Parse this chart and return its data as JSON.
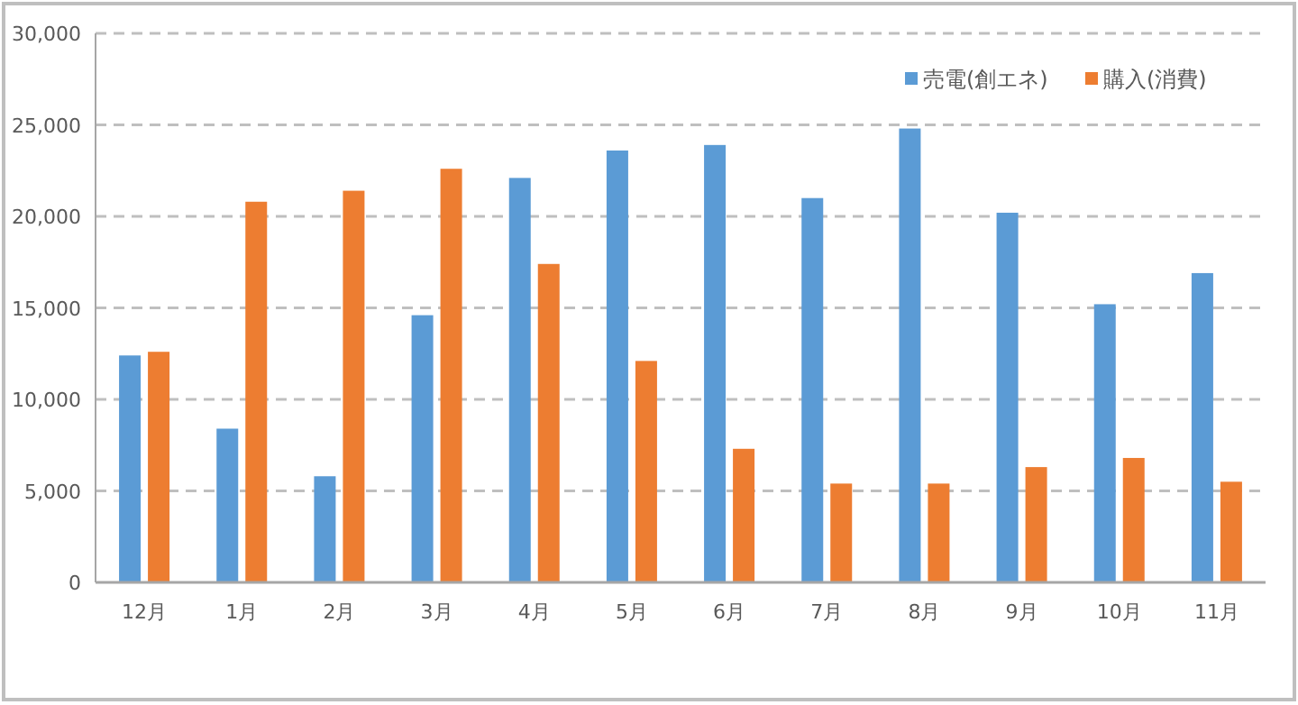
{
  "chart_data": {
    "type": "bar",
    "categories": [
      "12月",
      "1月",
      "2月",
      "3月",
      "4月",
      "5月",
      "6月",
      "7月",
      "8月",
      "9月",
      "10月",
      "11月"
    ],
    "series": [
      {
        "name": "売電(創エネ)",
        "color": "#5b9bd5",
        "values": [
          12400,
          8400,
          5800,
          14600,
          22100,
          23600,
          23900,
          21000,
          24800,
          20200,
          15200,
          16900
        ]
      },
      {
        "name": "購入(消費)",
        "color": "#ed7d31",
        "values": [
          12600,
          20800,
          21400,
          22600,
          17400,
          12100,
          7300,
          5400,
          5400,
          6300,
          6800,
          5500
        ]
      }
    ],
    "ylim": [
      0,
      30000
    ],
    "yticks": [
      {
        "value": 0,
        "label": "0"
      },
      {
        "value": 5000,
        "label": "5,000"
      },
      {
        "value": 10000,
        "label": "10,000"
      },
      {
        "value": 15000,
        "label": "15,000"
      },
      {
        "value": 20000,
        "label": "20,000"
      },
      {
        "value": 25000,
        "label": "25,000"
      },
      {
        "value": 30000,
        "label": "30,000"
      }
    ],
    "grid": "y",
    "legend": "top right"
  }
}
